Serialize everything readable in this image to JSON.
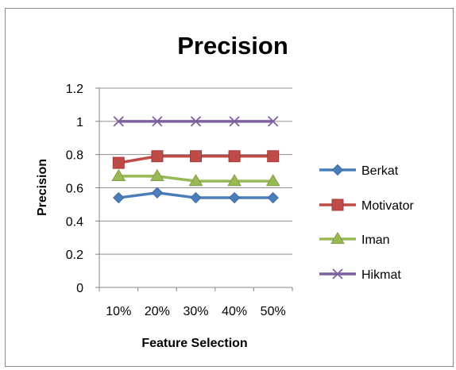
{
  "chart_data": {
    "type": "line",
    "title": "Precision",
    "xlabel": "Feature Selection",
    "ylabel": "Precision",
    "categories": [
      "10%",
      "20%",
      "30%",
      "40%",
      "50%"
    ],
    "ylim": [
      0,
      1.2
    ],
    "yticks": [
      "0",
      "0.2",
      "0.4",
      "0.6",
      "0.8",
      "1",
      "1.2"
    ],
    "grid": true,
    "legend_position": "right",
    "series": [
      {
        "name": "Berkat",
        "values": [
          0.54,
          0.57,
          0.54,
          0.54,
          0.54
        ],
        "color": "#4a7ebb",
        "marker": "diamond"
      },
      {
        "name": "Motivator",
        "values": [
          0.75,
          0.79,
          0.79,
          0.79,
          0.79
        ],
        "color": "#be4b48",
        "marker": "square"
      },
      {
        "name": "Iman",
        "values": [
          0.67,
          0.67,
          0.64,
          0.64,
          0.64
        ],
        "color": "#98b954",
        "marker": "triangle"
      },
      {
        "name": "Hikmat",
        "values": [
          1,
          1,
          1,
          1,
          1
        ],
        "color": "#7d60a0",
        "marker": "x"
      }
    ]
  }
}
